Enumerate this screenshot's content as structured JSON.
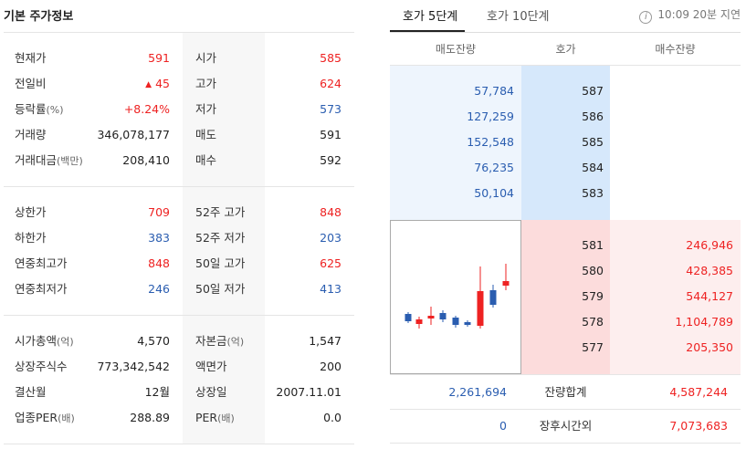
{
  "left": {
    "title": "기본 주가정보",
    "section1": [
      {
        "l1": "현재가",
        "u1": "",
        "v1": "591",
        "c1": "red",
        "l2": "시가",
        "u2": "",
        "v2": "585",
        "c2": "red"
      },
      {
        "l1": "전일비",
        "u1": "",
        "v1": "45",
        "c1": "red",
        "tri": "▲",
        "l2": "고가",
        "u2": "",
        "v2": "624",
        "c2": "red"
      },
      {
        "l1": "등락률",
        "u1": "(%)",
        "v1": "+8.24%",
        "c1": "red",
        "l2": "저가",
        "u2": "",
        "v2": "573",
        "c2": "blue"
      },
      {
        "l1": "거래량",
        "u1": "",
        "v1": "346,078,177",
        "c1": "",
        "l2": "매도",
        "u2": "",
        "v2": "591",
        "c2": ""
      },
      {
        "l1": "거래대금",
        "u1": "(백만)",
        "v1": "208,410",
        "c1": "",
        "l2": "매수",
        "u2": "",
        "v2": "592",
        "c2": ""
      }
    ],
    "section2": [
      {
        "l1": "상한가",
        "u1": "",
        "v1": "709",
        "c1": "red",
        "l2": "52주 고가",
        "u2": "",
        "v2": "848",
        "c2": "red"
      },
      {
        "l1": "하한가",
        "u1": "",
        "v1": "383",
        "c1": "blue",
        "l2": "52주 저가",
        "u2": "",
        "v2": "203",
        "c2": "blue"
      },
      {
        "l1": "연중최고가",
        "u1": "",
        "v1": "848",
        "c1": "red",
        "l2": "50일 고가",
        "u2": "",
        "v2": "625",
        "c2": "red"
      },
      {
        "l1": "연중최저가",
        "u1": "",
        "v1": "246",
        "c1": "blue",
        "l2": "50일 저가",
        "u2": "",
        "v2": "413",
        "c2": "blue"
      }
    ],
    "section3": [
      {
        "l1": "시가총액",
        "u1": "(억)",
        "v1": "4,570",
        "c1": "",
        "l2": "자본금",
        "u2": "(억)",
        "v2": "1,547",
        "c2": ""
      },
      {
        "l1": "상장주식수",
        "u1": "",
        "v1": "773,342,542",
        "c1": "",
        "l2": "액면가",
        "u2": "",
        "v2": "200",
        "c2": ""
      },
      {
        "l1": "결산월",
        "u1": "",
        "v1": "12월",
        "c1": "",
        "l2": "상장일",
        "u2": "",
        "v2": "2007.11.01",
        "c2": ""
      },
      {
        "l1": "업종PER",
        "u1": "(배)",
        "v1": "288.89",
        "c1": "",
        "l2": "PER",
        "u2": "(배)",
        "v2": "0.0",
        "c2": ""
      }
    ]
  },
  "right": {
    "tabs": [
      "호가 5단계",
      "호가 10단계"
    ],
    "info_icon": "i",
    "info_text": "10:09 20분 지연",
    "headers": [
      "매도잔량",
      "호가",
      "매수잔량"
    ],
    "asks": [
      {
        "qty": "57,784",
        "price": "587"
      },
      {
        "qty": "127,259",
        "price": "586"
      },
      {
        "qty": "152,548",
        "price": "585"
      },
      {
        "qty": "76,235",
        "price": "584"
      },
      {
        "qty": "50,104",
        "price": "583"
      }
    ],
    "bids": [
      {
        "price": "581",
        "qty": "246,946"
      },
      {
        "price": "580",
        "qty": "428,385"
      },
      {
        "price": "579",
        "qty": "544,127"
      },
      {
        "price": "578",
        "qty": "1,104,789"
      },
      {
        "price": "577",
        "qty": "205,350"
      }
    ],
    "summary": {
      "ask_total": "2,261,694",
      "label": "잔량합계",
      "bid_total": "4,587,244"
    },
    "afterhours": {
      "ask": "0",
      "label": "장후시간외",
      "bid": "7,073,683"
    }
  },
  "colors": {
    "up": "#e22222",
    "down": "#2a5db0"
  }
}
